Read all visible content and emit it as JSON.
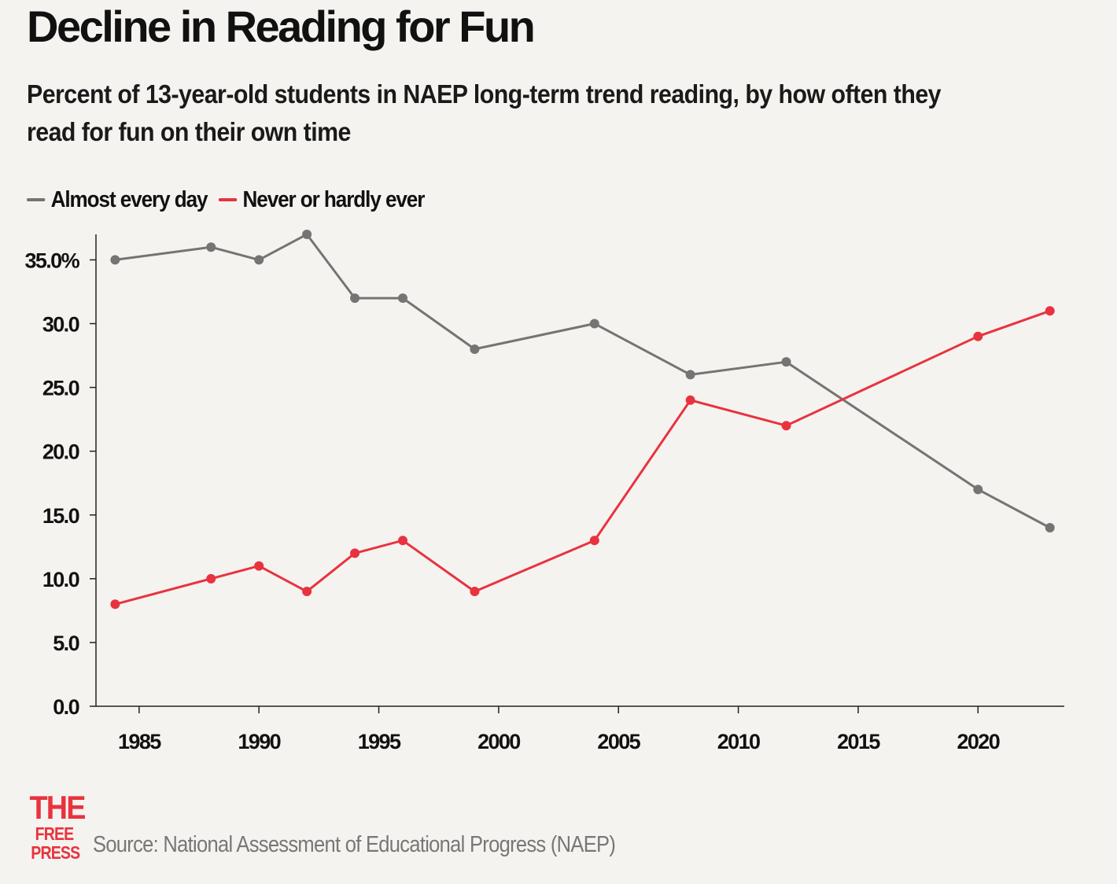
{
  "chart_data": {
    "type": "line",
    "title": "Decline in Reading for Fun",
    "subtitle": "Percent of 13-year-old students in NAEP long-term trend reading, by how often they read for fun on their own time",
    "xlabel": "",
    "ylabel": "",
    "xlim": [
      1983.2,
      2023.6
    ],
    "ylim": [
      0,
      37
    ],
    "x_ticks": [
      1985,
      1990,
      1995,
      2000,
      2005,
      2010,
      2015,
      2020
    ],
    "y_ticks": [
      0,
      5,
      10,
      15,
      20,
      25,
      30,
      35
    ],
    "y_tick_labels": [
      "0.0",
      "5.0",
      "10.0",
      "15.0",
      "20.0",
      "25.0",
      "30.0",
      "35.0%"
    ],
    "legend_position": "top-left",
    "grid": false,
    "series": [
      {
        "name": "Almost every day",
        "color": "#747474",
        "x": [
          1984,
          1988,
          1990,
          1992,
          1994,
          1996,
          1999,
          2004,
          2008,
          2012,
          2020,
          2023
        ],
        "values": [
          35,
          36,
          35,
          37,
          32,
          32,
          28,
          30,
          26,
          27,
          17,
          14
        ]
      },
      {
        "name": "Never or hardly ever",
        "color": "#e8333f",
        "x": [
          1984,
          1988,
          1990,
          1992,
          1994,
          1996,
          1999,
          2004,
          2008,
          2012,
          2020,
          2023
        ],
        "values": [
          8,
          10,
          11,
          9,
          12,
          13,
          9,
          13,
          24,
          22,
          29,
          31
        ]
      }
    ]
  },
  "logo": {
    "line1": "THE",
    "line2": "FREE",
    "line3": "PRESS"
  },
  "source": "Source: National Assessment of Educational Progress (NAEP)"
}
